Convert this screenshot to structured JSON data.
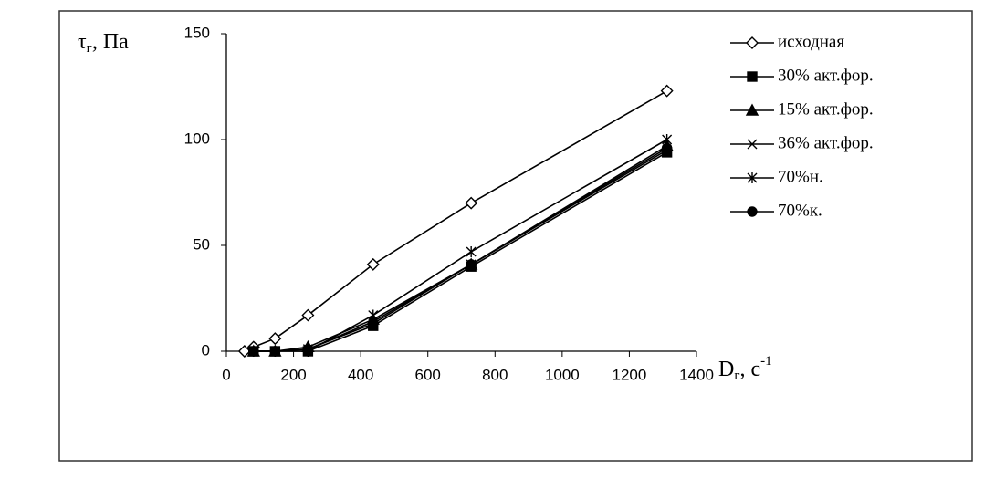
{
  "chart_data": {
    "type": "line",
    "ylabel": [
      "τ",
      "г",
      ", Па"
    ],
    "xlabel": [
      "D",
      "г",
      ", с",
      "-1"
    ],
    "x": [
      54,
      81,
      145,
      243,
      437,
      729,
      1312
    ],
    "xlim": [
      0,
      1400
    ],
    "xticks": [
      0,
      200,
      400,
      600,
      800,
      1000,
      1200,
      1400
    ],
    "ylim": [
      0,
      150
    ],
    "yticks": [
      0,
      50,
      100,
      150
    ],
    "grid": false,
    "legend": "right",
    "series": [
      {
        "name": "исходная",
        "color": "#000000",
        "marker": "diamond-open",
        "values": [
          0,
          2,
          6,
          17,
          41,
          70,
          123
        ]
      },
      {
        "name": "30% акт.фор.",
        "color": "#000000",
        "marker": "square",
        "values": [
          null,
          0,
          0,
          0,
          12,
          40,
          94
        ]
      },
      {
        "name": "15% акт.фор.",
        "color": "#000000",
        "marker": "triangle",
        "values": [
          null,
          0,
          0,
          2,
          15,
          41,
          97
        ]
      },
      {
        "name": "36% акт.фор.",
        "color": "#000000",
        "marker": "x",
        "values": [
          null,
          0,
          0,
          1,
          14,
          41,
          95
        ]
      },
      {
        "name": "70%н.",
        "color": "#000000",
        "marker": "asterisk",
        "values": [
          null,
          0,
          0,
          0,
          17,
          47,
          100
        ]
      },
      {
        "name": "70%к.",
        "color": "#000000",
        "marker": "circle",
        "values": [
          null,
          0,
          0,
          1,
          13,
          41,
          96
        ]
      }
    ]
  }
}
